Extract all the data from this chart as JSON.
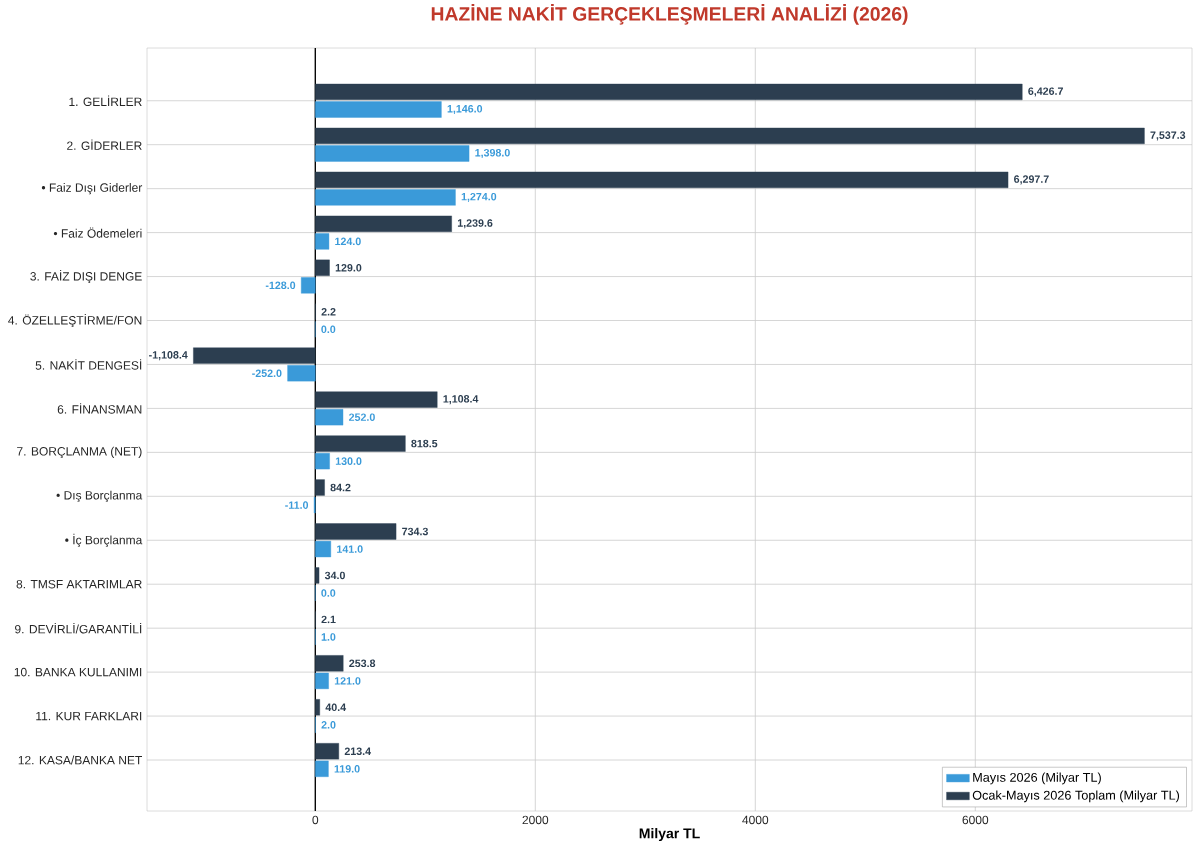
{
  "chart_data": {
    "type": "bar",
    "orientation": "horizontal",
    "title": "HAZİNE NAKİT GERÇEKLEŞMELERİ ANALİZİ (2026)",
    "xlabel": "Milyar TL",
    "categories": [
      "1. GELİRLER",
      "2. GİDERLER",
      "• Faiz Dışı Giderler",
      "• Faiz Ödemeleri",
      "3. FAİZ DIŞI DENGE",
      "4. ÖZELLEŞTİRME/FON",
      "5. NAKİT DENGESİ",
      "6. FİNANSMAN",
      "7. BORÇLANMA (NET)",
      "• Dış Borçlanma",
      "• İç Borçlanma",
      "8. TMSF AKTARIMLAR",
      "9. DEVİRLİ/GARANTİLİ",
      "10. BANKA KULLANIMI",
      "11. KUR FARKLARI",
      "12. KASA/BANKA NET"
    ],
    "series": [
      {
        "name": "Mayıs 2026 (Milyar TL)",
        "color": "#3a9ad9",
        "values": [
          1146.0,
          1398.0,
          1274.0,
          124.0,
          -128.0,
          0.0,
          -252.0,
          252.0,
          130.0,
          -11.0,
          141.0,
          0.0,
          1.0,
          121.0,
          2.0,
          119.0
        ],
        "value_labels": [
          "1,146.0",
          "1,398.0",
          "1,274.0",
          "124.0",
          "-128.0",
          "0.0",
          "-252.0",
          "252.0",
          "130.0",
          "-11.0",
          "141.0",
          "0.0",
          "1.0",
          "121.0",
          "2.0",
          "119.0"
        ]
      },
      {
        "name": "Ocak-Mayıs 2026 Toplam (Milyar TL)",
        "color": "#2c3e50",
        "values": [
          6426.7,
          7537.3,
          6297.7,
          1239.6,
          129.0,
          2.2,
          -1108.4,
          1108.4,
          818.5,
          84.2,
          734.3,
          34.0,
          2.1,
          253.8,
          40.4,
          213.4
        ],
        "value_labels": [
          "6,426.7",
          "7,537.3",
          "6,297.7",
          "1,239.6",
          "129.0",
          "2.2",
          "-1,108.4",
          "1,108.4",
          "818.5",
          "84.2",
          "734.3",
          "34.0",
          "2.1",
          "253.8",
          "40.4",
          "213.4"
        ]
      }
    ],
    "xlim": [
      -1530,
      7970
    ],
    "xticks": [
      0,
      2000,
      4000,
      6000
    ],
    "ref_lines": [
      {
        "axis": "x",
        "value": 0,
        "color": "#000000"
      }
    ],
    "grid": true,
    "legend": "bottom right"
  }
}
